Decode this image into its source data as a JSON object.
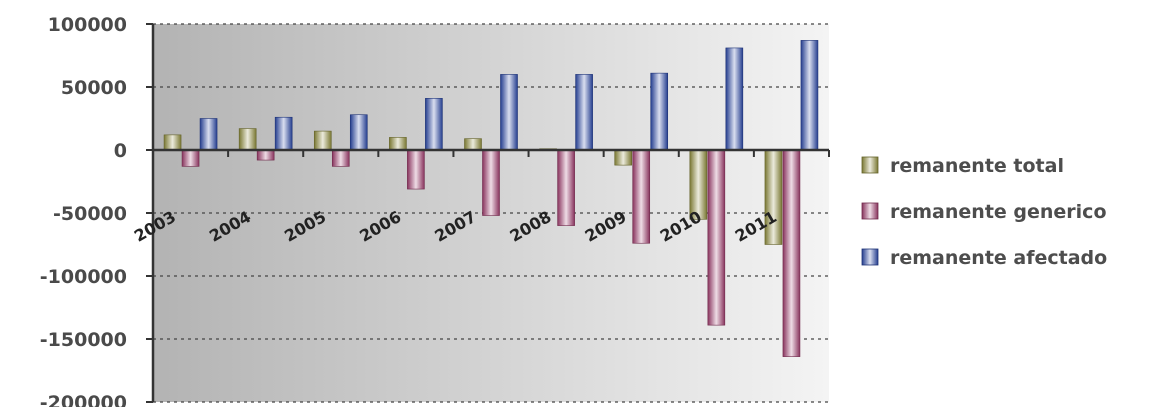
{
  "chart_data": {
    "type": "bar",
    "categories": [
      "2003",
      "2004",
      "2005",
      "2006",
      "2007",
      "2008",
      "2009",
      "2010",
      "2011"
    ],
    "series": [
      {
        "name": "remanente total",
        "values": [
          12000,
          17000,
          15000,
          10000,
          9000,
          1000,
          -12000,
          -55000,
          -75000
        ]
      },
      {
        "name": "remanente generico",
        "values": [
          -13000,
          -8000,
          -13000,
          -31000,
          -52000,
          -60000,
          -74000,
          -139000,
          -164000
        ]
      },
      {
        "name": "remanente afectado",
        "values": [
          25000,
          26000,
          28000,
          41000,
          60000,
          60000,
          61000,
          81000,
          87000
        ]
      }
    ],
    "y_ticks": [
      "100000",
      "50000",
      "0",
      "-50000",
      "-100000",
      "-150000",
      "-200000"
    ],
    "ylim": [
      -200000,
      100000
    ],
    "grid": true,
    "legend_position": "right",
    "colors": {
      "remanente total": "#8f8d3c",
      "remanente generico": "#a03c6d",
      "remanente afectado": "#2c49a8"
    }
  }
}
